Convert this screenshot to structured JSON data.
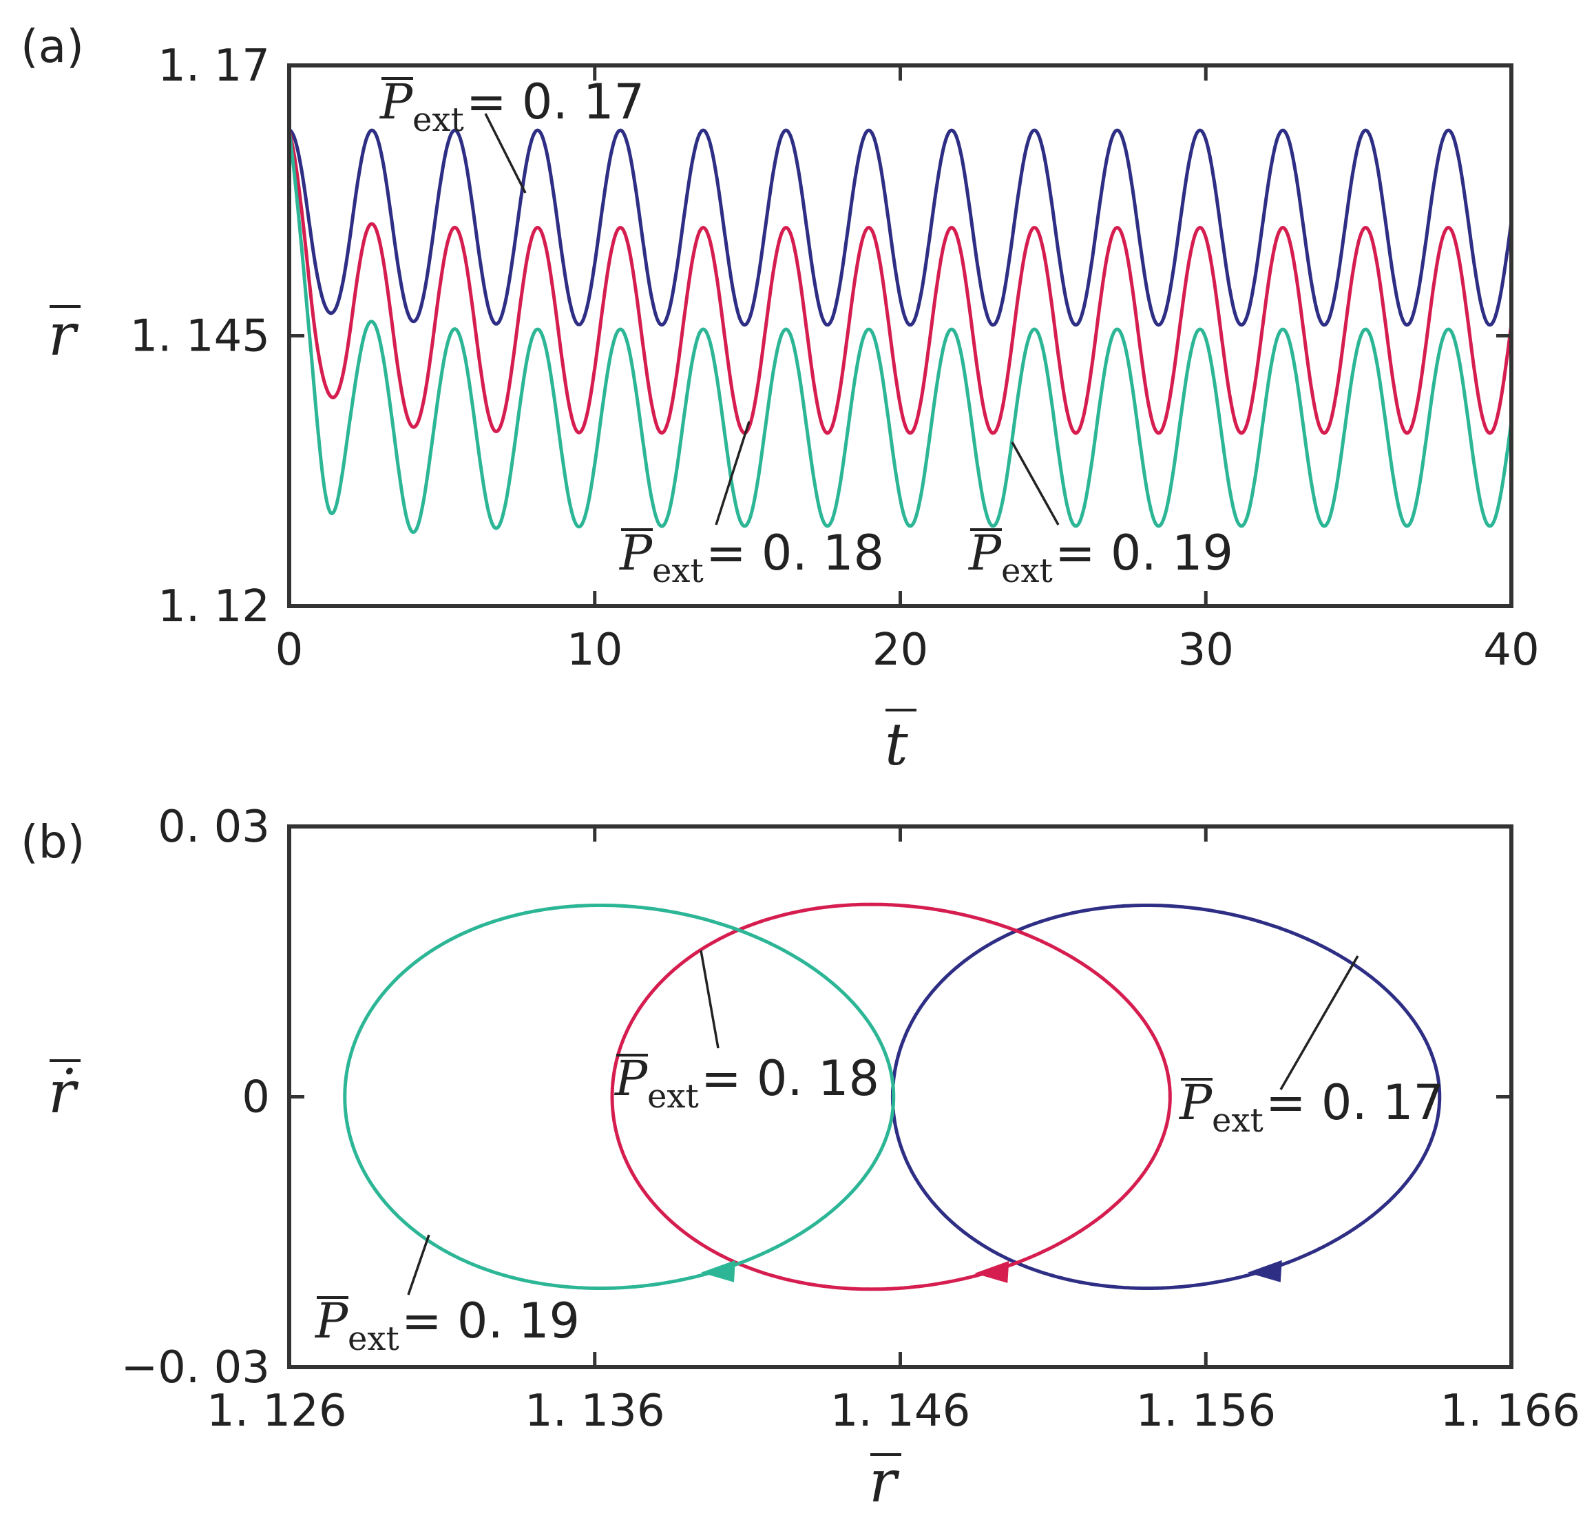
{
  "colors": {
    "p017": "#2e2e85",
    "p018": "#d51e4f",
    "p019": "#2cb696"
  },
  "chart_data": [
    {
      "panel": "(a)",
      "type": "line",
      "xlabel": "t",
      "ylabel": "r",
      "xlim": [
        0,
        40
      ],
      "ylim": [
        1.12,
        1.17
      ],
      "x_ticks": [
        "0",
        "10",
        "20",
        "30",
        "40"
      ],
      "y_ticks": [
        "1. 12",
        "1. 145",
        "1. 17"
      ],
      "series": [
        {
          "name": "0. 17",
          "r0": 1.164,
          "mean": 1.155,
          "amplitude": 0.009,
          "period": 2.71,
          "first_min": 1.148
        },
        {
          "name": "0. 18",
          "r0": 1.164,
          "mean": 1.1455,
          "amplitude": 0.0095,
          "period": 2.71,
          "first_min": 1.139
        },
        {
          "name": "0. 19",
          "r0": 1.164,
          "mean": 1.1365,
          "amplitude": 0.0091,
          "period": 2.71,
          "first_min": 1.123
        }
      ],
      "annotations": [
        {
          "symbol": "P",
          "subscript": "ext",
          "value": "=  0. 17",
          "series": 0
        },
        {
          "symbol": "P",
          "subscript": "ext",
          "value": "=  0. 18",
          "series": 1
        },
        {
          "symbol": "P",
          "subscript": "ext",
          "value": "=  0. 19",
          "series": 2
        }
      ]
    },
    {
      "panel": "(b)",
      "type": "line",
      "xlabel": "r",
      "ylabel": "ṙ",
      "xlim": [
        1.126,
        1.166
      ],
      "ylim": [
        -0.03,
        0.03
      ],
      "x_ticks": [
        "1. 126",
        "1. 136",
        "1. 146",
        "1. 156",
        "1. 166"
      ],
      "y_ticks": [
        "−0. 03",
        "0",
        "0. 03"
      ],
      "series": [
        {
          "name": "0. 17",
          "r_center": 1.1547,
          "r_half_width": 0.00895,
          "rdot_amplitude": 0.0212
        },
        {
          "name": "0. 18",
          "r_center": 1.1457,
          "r_half_width": 0.00913,
          "rdot_amplitude": 0.0213
        },
        {
          "name": "0. 19",
          "r_center": 1.1368,
          "r_half_width": 0.00898,
          "rdot_amplitude": 0.0212
        }
      ],
      "annotations": [
        {
          "symbol": "P",
          "subscript": "ext",
          "value": "=  0. 17",
          "series": 0
        },
        {
          "symbol": "P",
          "subscript": "ext",
          "value": "=  0. 18",
          "series": 1
        },
        {
          "symbol": "P",
          "subscript": "ext",
          "value": "=  0. 19",
          "series": 2
        }
      ]
    }
  ]
}
